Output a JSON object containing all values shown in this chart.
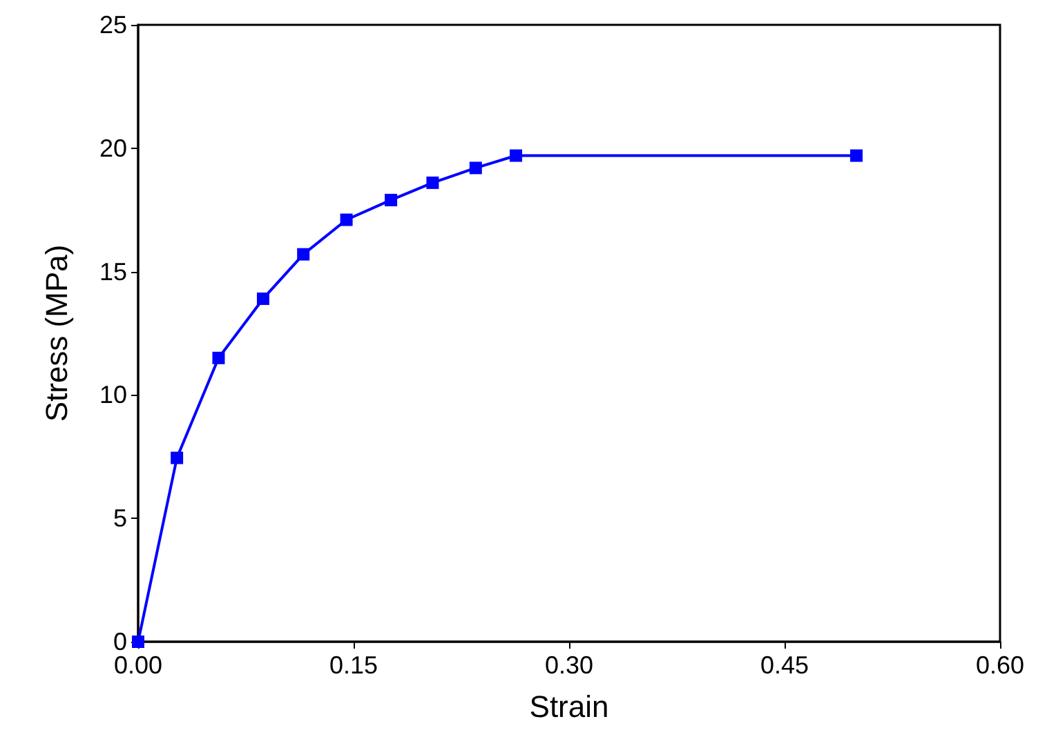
{
  "chart_data": {
    "type": "line",
    "xlabel": "Strain",
    "ylabel": "Stress (MPa)",
    "xlim": [
      0,
      0.6
    ],
    "xticks": [
      {
        "value": 0,
        "label": "0.00"
      },
      {
        "value": 0.15,
        "label": "0.15"
      },
      {
        "value": 0.3,
        "label": "0.30"
      },
      {
        "value": 0.45,
        "label": "0.45"
      },
      {
        "value": 0.6,
        "label": "0.60"
      }
    ],
    "ylim": [
      0,
      25
    ],
    "yticks": [
      0,
      5,
      10,
      15,
      20,
      25
    ],
    "grid": false,
    "marker": "square",
    "line_style": "solid",
    "series": [
      {
        "color": "#0000ff",
        "x": [
          0,
          0.027,
          0.056,
          0.087,
          0.115,
          0.145,
          0.176,
          0.205,
          0.235,
          0.263,
          0.5
        ],
        "values": [
          0,
          7.45,
          11.5,
          13.9,
          15.7,
          17.1,
          17.9,
          18.6,
          19.2,
          19.7,
          19.7
        ]
      }
    ]
  }
}
